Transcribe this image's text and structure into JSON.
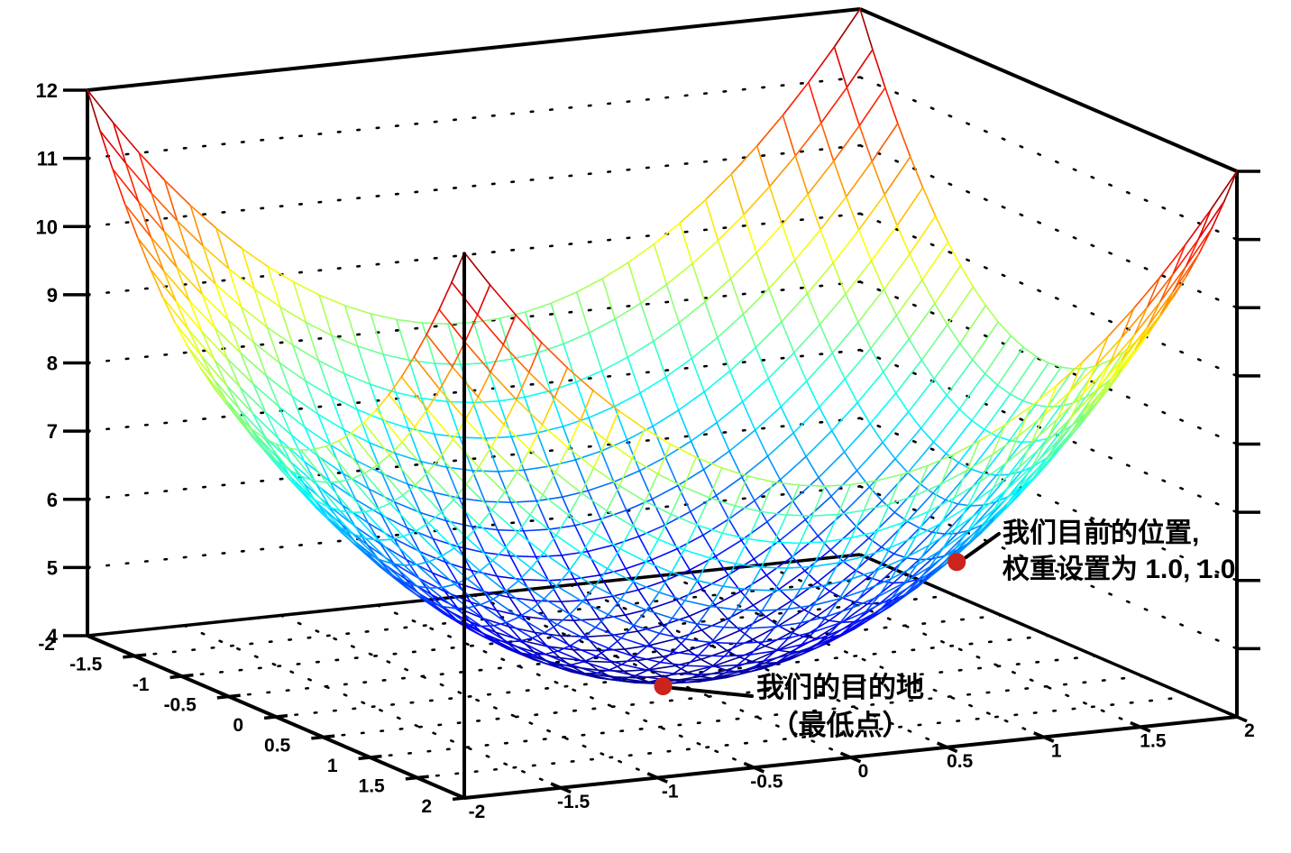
{
  "chart_data": {
    "type": "surface3d-wireframe",
    "title": "",
    "z_formula": "z = x^2 + y^2 + 4",
    "x_range": [
      -2,
      2
    ],
    "y_range": [
      -2,
      2
    ],
    "z_range": [
      4,
      12
    ],
    "x_ticks": [
      -2,
      -1.5,
      -1,
      -0.5,
      0,
      0.5,
      1,
      1.5,
      2
    ],
    "y_ticks": [
      -2,
      -1.5,
      -1,
      -0.5,
      0,
      0.5,
      1,
      1.5,
      2
    ],
    "z_ticks": [
      4,
      5,
      6,
      7,
      8,
      9,
      10,
      11,
      12
    ],
    "mesh_divisions": 30,
    "colormap": "jet",
    "wall_grid": "dotted horizontal lines at each z tick",
    "floor_grid": "dotted lines at each 0.5 step in x and y",
    "annotations": [
      {
        "id": "current-position",
        "lines": [
          "我们目前的位置,",
          "权重设置为 1.0, 1.0"
        ],
        "point": {
          "x": 1.0,
          "y": 1.0,
          "z": 6.0
        },
        "marker_color": "#cc241d"
      },
      {
        "id": "destination",
        "lines": [
          "我们的目的地",
          "（最低点）"
        ],
        "point": {
          "x": 0.0,
          "y": 0.0,
          "z": 4.0
        },
        "marker_color": "#cc241d"
      }
    ],
    "colors": {
      "axis": "#000000",
      "grid_dots": "#000000",
      "background": "#ffffff"
    }
  }
}
